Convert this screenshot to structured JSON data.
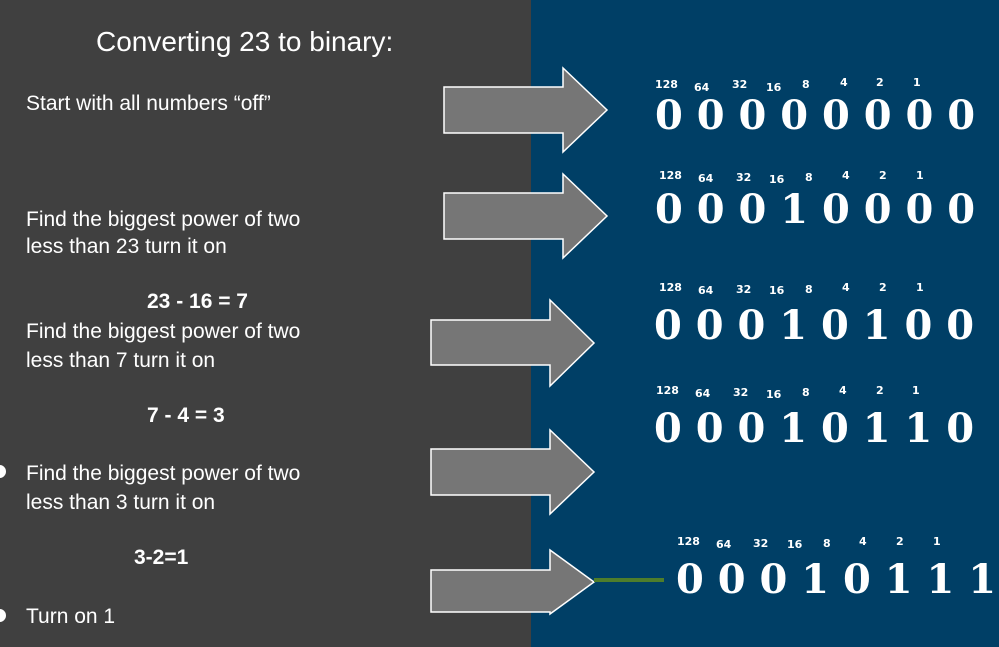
{
  "title": "Converting 23 to binary:",
  "steps": {
    "s1": "Start with all numbers “off”",
    "s2_line1": "Find the biggest power of two",
    "s2_line2": "less than 23 turn it on",
    "eq1": "23 - 16 = 7",
    "s3_line1": "Find the biggest power of two",
    "s3_line2": "less than 7 turn it on",
    "eq2": "7 - 4 = 3",
    "s4_line1": "Find the biggest power of two",
    "s4_line2": "less than 3 turn it on",
    "eq3": "3-2=1",
    "s5": "Turn on 1"
  },
  "place_values": [
    "128",
    "64",
    "32",
    "16",
    "8",
    "4",
    "2",
    "1"
  ],
  "binary_rows": [
    "0 0 0 0 0 0 0 0",
    "0 0 0  1 0 0 0 0",
    "0 0 0  1 0 1 0 0",
    "0 0 0  1 0 1 1 0",
    "0 0 0  1 0 1 1 1"
  ],
  "colors": {
    "left_background": "#404040",
    "right_background": "#003f66",
    "arrow_fill": "#767676",
    "connector_line": "#4e7d2b"
  }
}
